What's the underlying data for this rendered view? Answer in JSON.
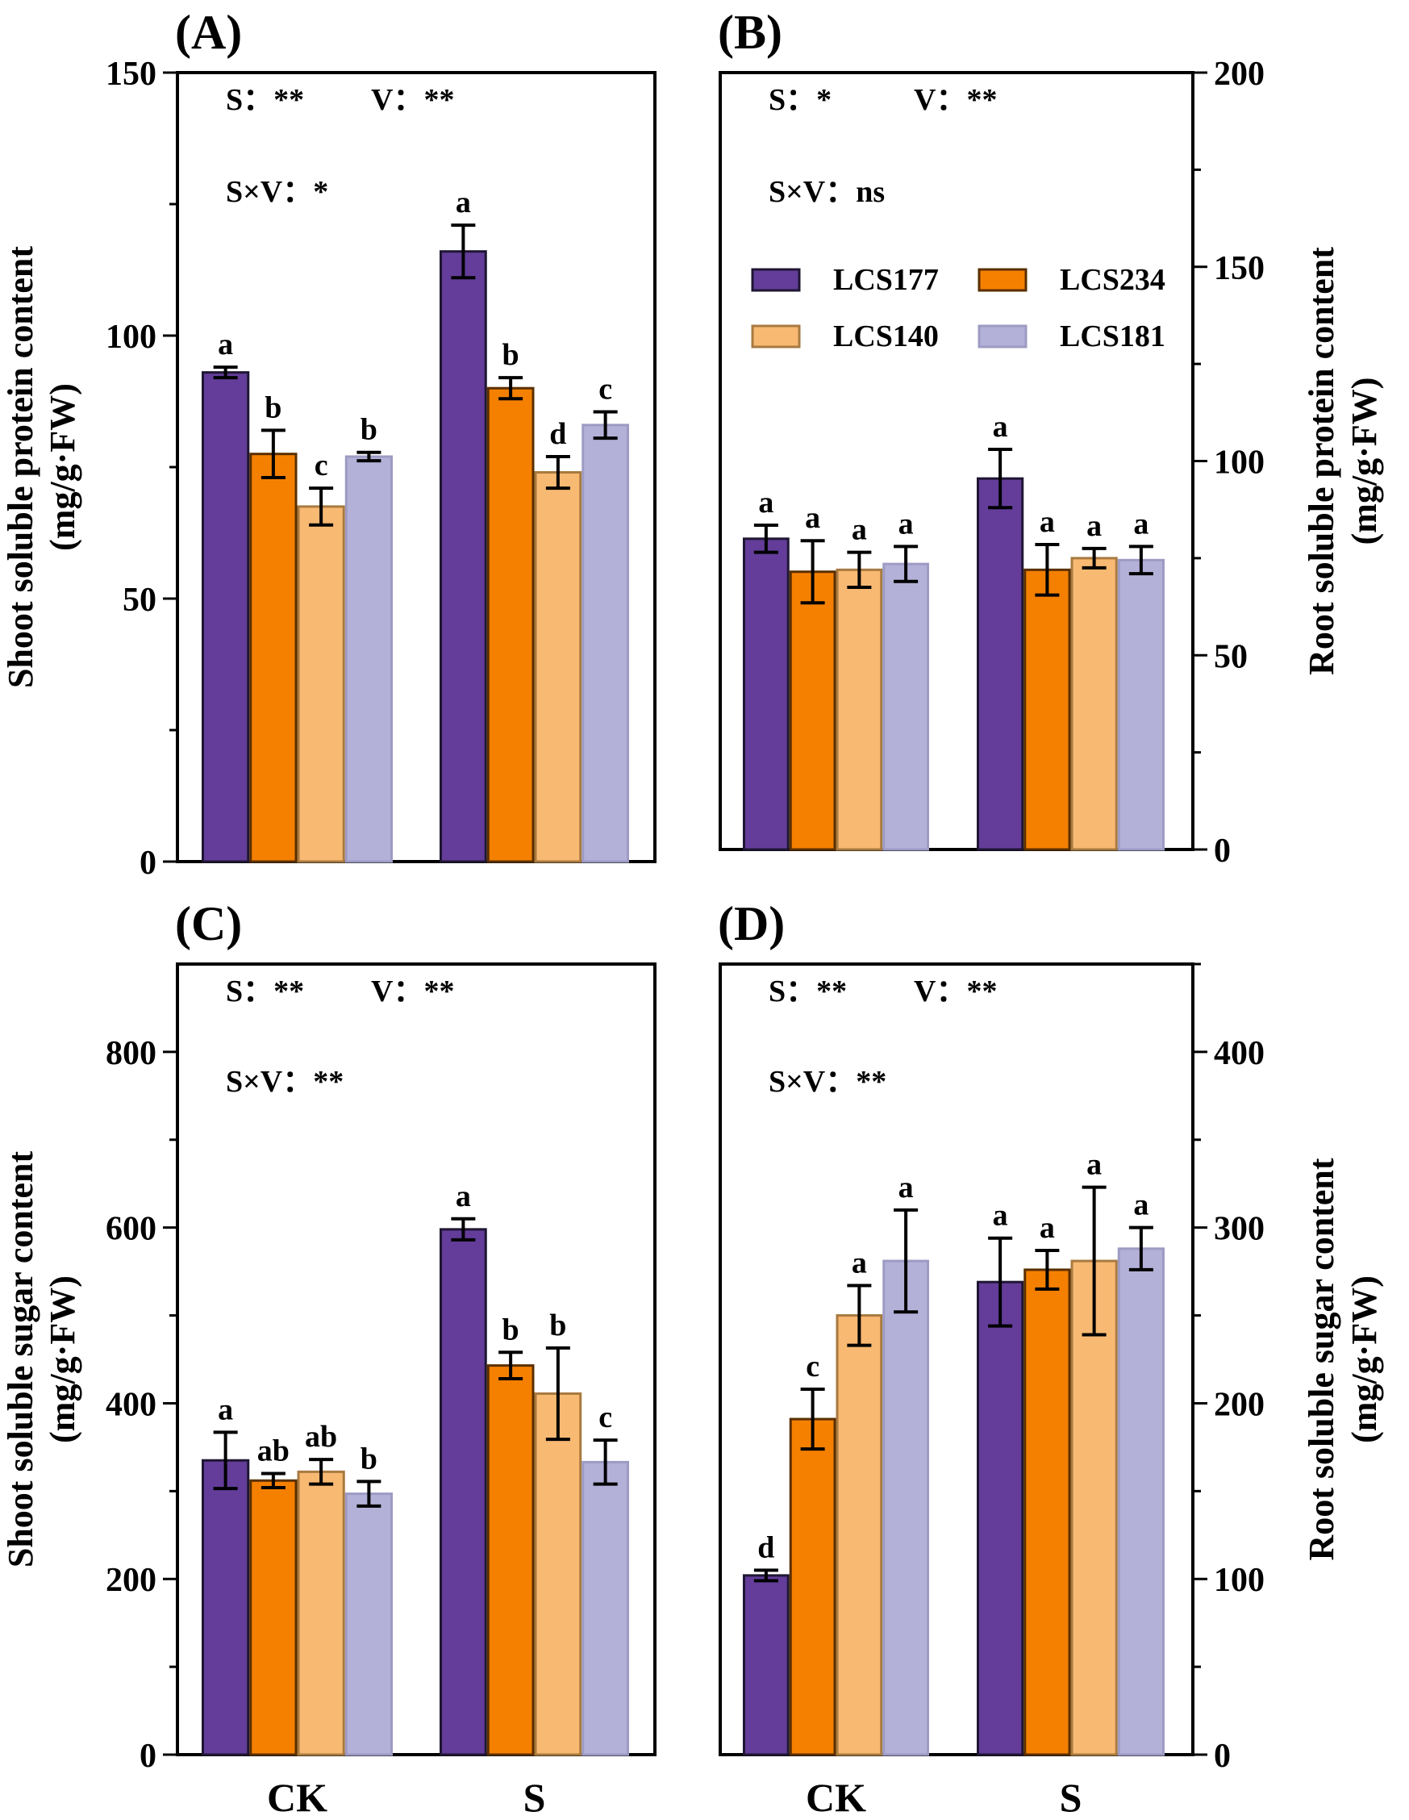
{
  "legend": {
    "entries": [
      {
        "name": "LCS177",
        "color": "#633d99"
      },
      {
        "name": "LCS234",
        "color": "#f58000"
      },
      {
        "name": "LCS140",
        "color": "#f8b972"
      },
      {
        "name": "LCS181",
        "color": "#b3b1d8"
      }
    ]
  },
  "chart_data": [
    {
      "id": "A",
      "type": "bar",
      "panel_label": "(A)",
      "title": "",
      "xlabel": "",
      "ylabel_lines": [
        "Shoot soluble protein content",
        "(mg/g·FW)"
      ],
      "ylabel_side": "left",
      "categories": [
        "CK",
        "S"
      ],
      "show_categories": false,
      "ylim": [
        0,
        150
      ],
      "major_ticks": [
        0,
        50,
        100,
        150
      ],
      "tick_labels": [
        "0",
        "50",
        "100",
        "150"
      ],
      "minor_ticks": [
        25,
        75,
        125
      ],
      "stats": [
        "S：**",
        "V：**",
        "S×V：*"
      ],
      "series": [
        {
          "name": "LCS177",
          "values": [
            93,
            116
          ],
          "errors": [
            1,
            5
          ],
          "letters": [
            "a",
            "a"
          ]
        },
        {
          "name": "LCS234",
          "values": [
            77.5,
            90
          ],
          "errors": [
            4.5,
            2
          ],
          "letters": [
            "b",
            "b"
          ]
        },
        {
          "name": "LCS140",
          "values": [
            67.5,
            74
          ],
          "errors": [
            3.5,
            3
          ],
          "letters": [
            "c",
            "d"
          ]
        },
        {
          "name": "LCS181",
          "values": [
            77,
            83
          ],
          "errors": [
            0.8,
            2.5
          ],
          "letters": [
            "b",
            "c"
          ]
        }
      ]
    },
    {
      "id": "B",
      "type": "bar",
      "panel_label": "(B)",
      "title": "",
      "xlabel": "",
      "ylabel_lines": [
        "Root soluble protein content",
        "(mg/g·FW)"
      ],
      "ylabel_side": "right",
      "categories": [
        "CK",
        "S"
      ],
      "show_categories": false,
      "ylim": [
        0,
        200
      ],
      "major_ticks": [
        0,
        50,
        100,
        150,
        200
      ],
      "tick_labels": [
        "0",
        "50",
        "100",
        "150",
        "200"
      ],
      "minor_ticks": [
        25,
        75,
        125,
        175
      ],
      "stats": [
        "S：*",
        "V：**",
        "S×V：ns"
      ],
      "series": [
        {
          "name": "LCS177",
          "values": [
            80,
            95.5
          ],
          "errors": [
            3.5,
            7.5
          ],
          "letters": [
            "a",
            "a"
          ]
        },
        {
          "name": "LCS234",
          "values": [
            71.5,
            72
          ],
          "errors": [
            8,
            6.5
          ],
          "letters": [
            "a",
            "a"
          ]
        },
        {
          "name": "LCS140",
          "values": [
            72,
            75
          ],
          "errors": [
            4.5,
            2.5
          ],
          "letters": [
            "a",
            "a"
          ]
        },
        {
          "name": "LCS181",
          "values": [
            73.5,
            74.5
          ],
          "errors": [
            4.5,
            3.5
          ],
          "letters": [
            "a",
            "a"
          ]
        }
      ]
    },
    {
      "id": "C",
      "type": "bar",
      "panel_label": "(C)",
      "title": "",
      "xlabel": "",
      "ylabel_lines": [
        "Shoot soluble sugar content",
        "(mg/g·FW)"
      ],
      "ylabel_side": "left",
      "categories": [
        "CK",
        "S"
      ],
      "show_categories": true,
      "ylim": [
        0,
        900
      ],
      "major_ticks": [
        0,
        200,
        400,
        600,
        800
      ],
      "tick_labels": [
        "0",
        "200",
        "400",
        "600",
        "800"
      ],
      "minor_ticks": [
        100,
        300,
        500,
        700
      ],
      "stats": [
        "S：**",
        "V：**",
        "S×V：**"
      ],
      "series": [
        {
          "name": "LCS177",
          "values": [
            335,
            598
          ],
          "errors": [
            32,
            12
          ],
          "letters": [
            "a",
            "a"
          ]
        },
        {
          "name": "LCS234",
          "values": [
            312,
            443
          ],
          "errors": [
            8,
            15
          ],
          "letters": [
            "ab",
            "b"
          ]
        },
        {
          "name": "LCS140",
          "values": [
            322,
            411
          ],
          "errors": [
            14,
            52
          ],
          "letters": [
            "ab",
            "b"
          ]
        },
        {
          "name": "LCS181",
          "values": [
            297,
            333
          ],
          "errors": [
            14,
            25
          ],
          "letters": [
            "b",
            "c"
          ]
        }
      ]
    },
    {
      "id": "D",
      "type": "bar",
      "panel_label": "(D)",
      "title": "",
      "xlabel": "",
      "ylabel_lines": [
        "Root soluble sugar content",
        "(mg/g·FW)"
      ],
      "ylabel_side": "right",
      "categories": [
        "CK",
        "S"
      ],
      "show_categories": true,
      "ylim": [
        0,
        450
      ],
      "major_ticks": [
        0,
        100,
        200,
        300,
        400
      ],
      "tick_labels": [
        "0",
        "100",
        "200",
        "300",
        "400"
      ],
      "minor_ticks": [
        50,
        150,
        250,
        350,
        450
      ],
      "stats": [
        "S：**",
        "V：**",
        "S×V：**"
      ],
      "series": [
        {
          "name": "LCS177",
          "values": [
            102,
            269
          ],
          "errors": [
            3,
            25
          ],
          "letters": [
            "d",
            "a"
          ]
        },
        {
          "name": "LCS234",
          "values": [
            191,
            276
          ],
          "errors": [
            17,
            11
          ],
          "letters": [
            "c",
            "a"
          ]
        },
        {
          "name": "LCS140",
          "values": [
            250,
            281
          ],
          "errors": [
            17,
            42
          ],
          "letters": [
            "a",
            "a"
          ]
        },
        {
          "name": "LCS181",
          "values": [
            281,
            288
          ],
          "errors": [
            29,
            12
          ],
          "letters": [
            "a",
            "a"
          ]
        }
      ]
    }
  ]
}
